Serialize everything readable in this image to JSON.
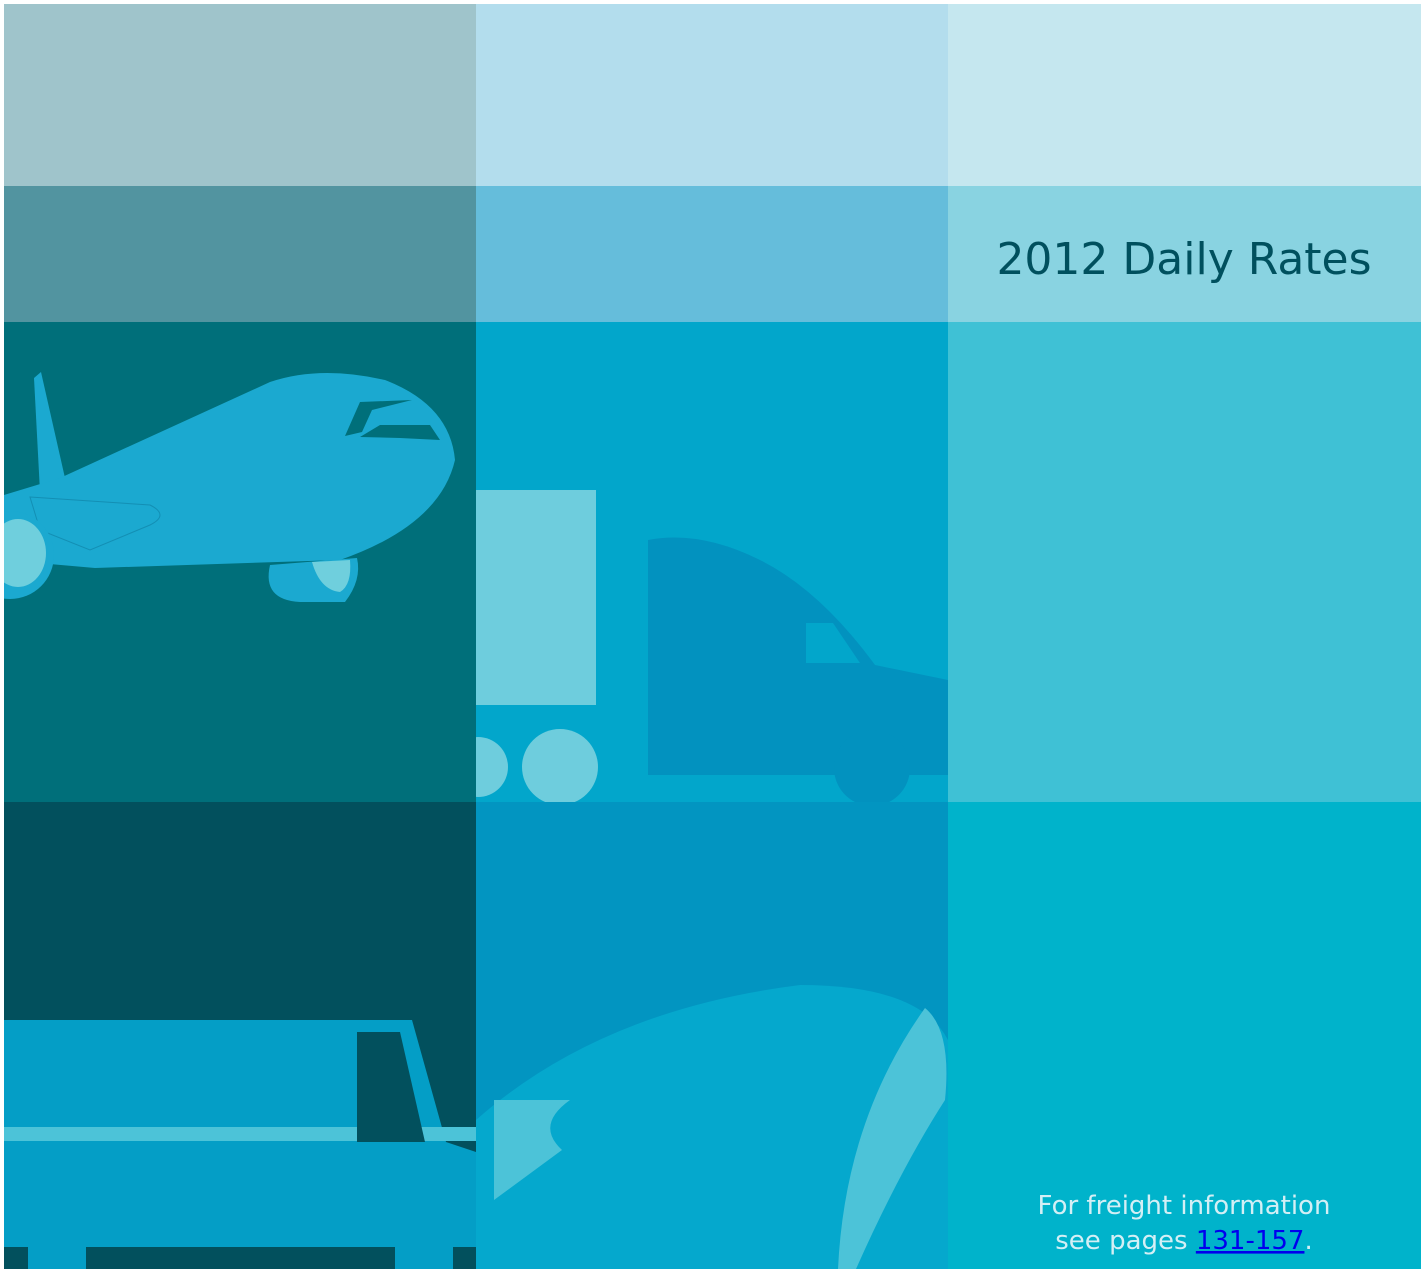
{
  "title": "2012 Daily Rates",
  "footer": {
    "line1": "For freight information",
    "line2": "see pages",
    "link": "131-157",
    "end": "."
  }
}
